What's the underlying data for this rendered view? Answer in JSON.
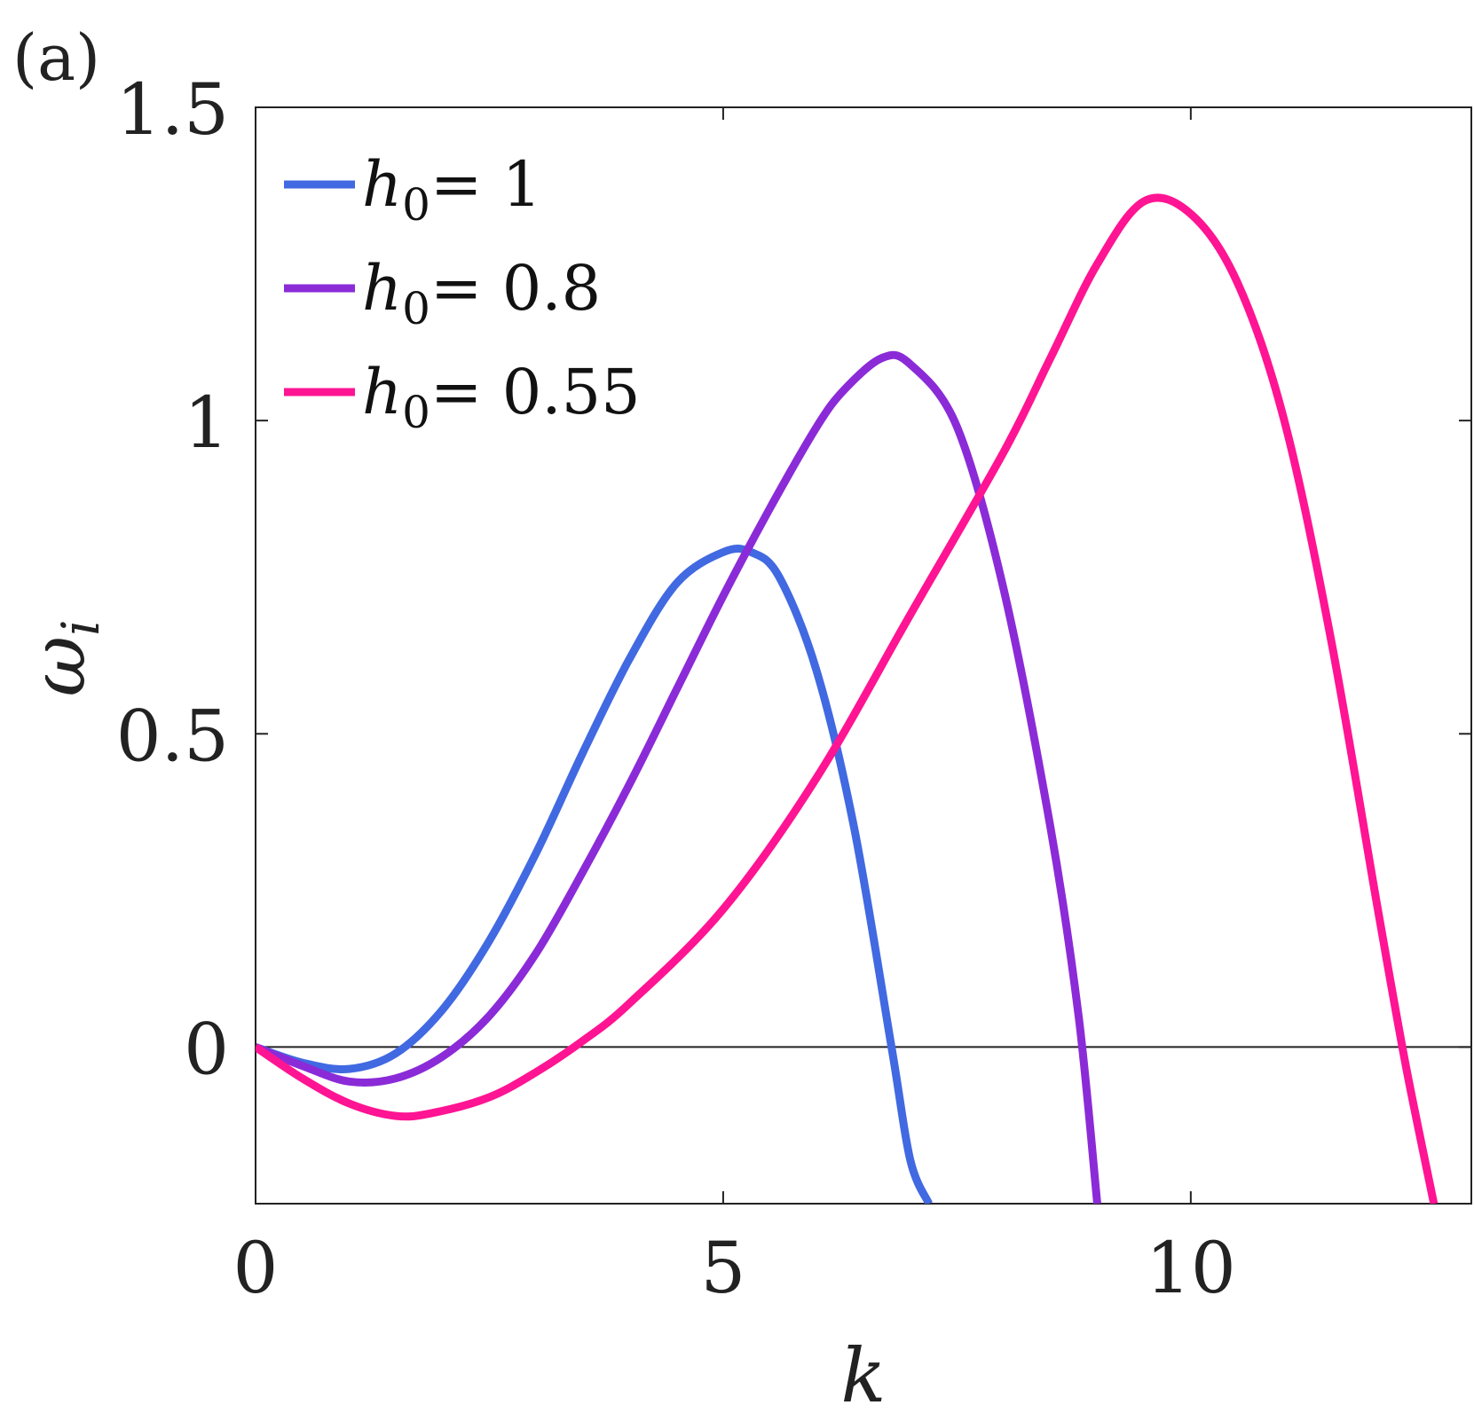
{
  "panel_label": "(a)",
  "chart_data": {
    "type": "line",
    "title": "",
    "xlabel": "k",
    "ylabel": "ω_i",
    "xlim": [
      0,
      13
    ],
    "ylim": [
      -0.25,
      1.5
    ],
    "xticks": [
      0,
      5,
      10
    ],
    "yticks": [
      0,
      0.5,
      1,
      1.5
    ],
    "xtick_labels": [
      "0",
      "5",
      "10"
    ],
    "ytick_labels": [
      "0",
      "0.5",
      "1",
      "1.5"
    ],
    "zero_line": true,
    "grid": false,
    "legend_position": "top-left",
    "series": [
      {
        "name": "h0= 1",
        "legend": {
          "sym": "h",
          "sub": "0",
          "rest": "= 1"
        },
        "color": "#4169E1",
        "x": [
          0,
          0.5,
          1.0,
          1.5,
          2.0,
          2.5,
          3.0,
          3.5,
          4.0,
          4.5,
          5.0,
          5.3,
          5.6,
          6.0,
          6.4,
          6.8,
          7.0,
          7.2
        ],
        "y": [
          0,
          -0.025,
          -0.035,
          -0.01,
          0.06,
          0.17,
          0.31,
          0.47,
          0.62,
          0.74,
          0.79,
          0.79,
          0.75,
          0.6,
          0.35,
          0.0,
          -0.18,
          -0.25
        ]
      },
      {
        "name": "h0= 0.8",
        "legend": {
          "sym": "h",
          "sub": "0",
          "rest": "= 0.8"
        },
        "color": "#8B2BD8",
        "x": [
          0,
          0.5,
          1.0,
          1.5,
          2.0,
          2.5,
          3.0,
          3.5,
          4.0,
          4.5,
          5.0,
          5.5,
          6.0,
          6.3,
          6.7,
          7.0,
          7.5,
          8.0,
          8.5,
          8.8,
          9.0
        ],
        "y": [
          0,
          -0.03,
          -0.055,
          -0.05,
          -0.015,
          0.05,
          0.15,
          0.28,
          0.42,
          0.57,
          0.72,
          0.86,
          0.99,
          1.05,
          1.1,
          1.09,
          0.99,
          0.73,
          0.35,
          0.05,
          -0.25
        ]
      },
      {
        "name": "h0= 0.55",
        "legend": {
          "sym": "h",
          "sub": "0",
          "rest": "= 0.55"
        },
        "color": "#FF1493",
        "x": [
          0,
          0.5,
          1.0,
          1.5,
          1.9,
          2.5,
          3.0,
          3.5,
          4.0,
          5.0,
          6.0,
          7.0,
          8.0,
          8.5,
          9.0,
          9.5,
          10.0,
          10.5,
          11.0,
          11.5,
          12.0,
          12.3,
          12.6
        ],
        "y": [
          0,
          -0.05,
          -0.09,
          -0.11,
          -0.105,
          -0.08,
          -0.04,
          0.01,
          0.07,
          0.22,
          0.43,
          0.69,
          0.95,
          1.1,
          1.25,
          1.35,
          1.33,
          1.22,
          1.0,
          0.65,
          0.22,
          -0.03,
          -0.25
        ]
      }
    ]
  }
}
